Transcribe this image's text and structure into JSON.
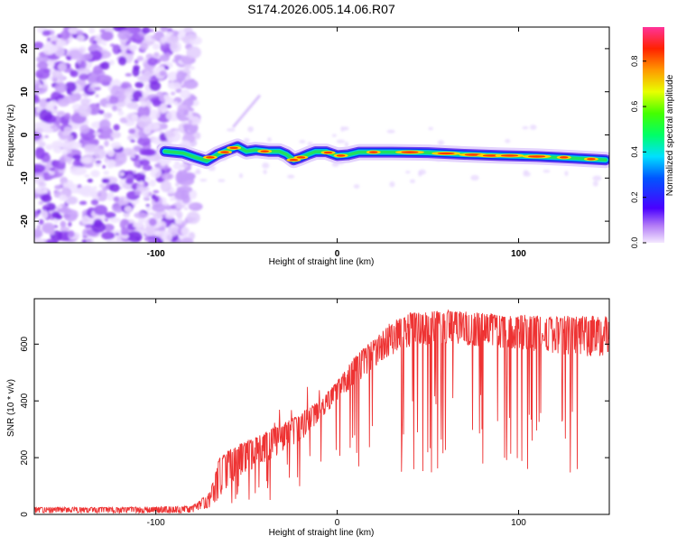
{
  "title": "S174.2026.005.14.06.R07",
  "chart_data": [
    {
      "type": "heatmap",
      "xlabel": "Height of straight line (km)",
      "ylabel": "Frequency (Hz)",
      "xlim": [
        -167,
        150
      ],
      "ylim": [
        -25,
        25
      ],
      "x_ticks": [
        -100,
        0,
        100
      ],
      "y_ticks": [
        -20,
        -10,
        0,
        10,
        20
      ],
      "colorbar": {
        "label": "Normalized spectral amplitude",
        "range": [
          0,
          0.95
        ],
        "ticks": [
          0.0,
          0.2,
          0.4,
          0.6,
          0.8
        ]
      },
      "signal_trace": {
        "description_points": [
          [
            -95,
            -3.8
          ],
          [
            -85,
            -4.2
          ],
          [
            -78,
            -5.2
          ],
          [
            -72,
            -6
          ],
          [
            -66,
            -4.5
          ],
          [
            -60,
            -3.5
          ],
          [
            -55,
            -2.7
          ],
          [
            -50,
            -3.8
          ],
          [
            -45,
            -3.5
          ],
          [
            -38,
            -3.8
          ],
          [
            -32,
            -3.8
          ],
          [
            -28,
            -4.5
          ],
          [
            -24,
            -5.8
          ],
          [
            -20,
            -5.2
          ],
          [
            -16,
            -4.5
          ],
          [
            -12,
            -3.9
          ],
          [
            -6,
            -3.9
          ],
          [
            0,
            -4.8
          ],
          [
            6,
            -4.6
          ],
          [
            12,
            -4.0
          ],
          [
            30,
            -4.0
          ],
          [
            50,
            -4.1
          ],
          [
            70,
            -4.5
          ],
          [
            90,
            -4.8
          ],
          [
            110,
            -5.0
          ],
          [
            130,
            -5.4
          ],
          [
            148,
            -5.8
          ]
        ],
        "note": "Strong narrow-band signal around -4 to -6 Hz from about -95 km to 150 km; diffuse noise below -80 km"
      }
    },
    {
      "type": "line",
      "xlabel": "Height of straight line (km)",
      "ylabel": "SNR (10 * v/v)",
      "xlim": [
        -167,
        150
      ],
      "ylim": [
        0,
        760
      ],
      "x_ticks": [
        -100,
        0,
        100
      ],
      "y_ticks": [
        0,
        200,
        400,
        600
      ],
      "series": [
        {
          "name": "SNR",
          "color": "#ee3333",
          "envelope_x": [
            -167,
            -120,
            -80,
            -70,
            -65,
            -60,
            -50,
            -40,
            -30,
            -20,
            -10,
            0,
            10,
            20,
            30,
            40,
            60,
            80,
            100,
            112,
            113,
            114,
            115,
            116,
            130,
            150
          ],
          "envelope_upper": [
            25,
            25,
            30,
            80,
            200,
            230,
            260,
            290,
            320,
            360,
            400,
            470,
            560,
            620,
            680,
            710,
            720,
            710,
            705,
            700,
            640,
            640,
            700,
            700,
            700,
            700
          ],
          "envelope_lower": [
            5,
            5,
            5,
            20,
            60,
            100,
            150,
            180,
            220,
            260,
            330,
            400,
            460,
            510,
            560,
            590,
            600,
            590,
            580,
            570,
            600,
            610,
            580,
            570,
            560,
            550
          ]
        }
      ]
    }
  ]
}
